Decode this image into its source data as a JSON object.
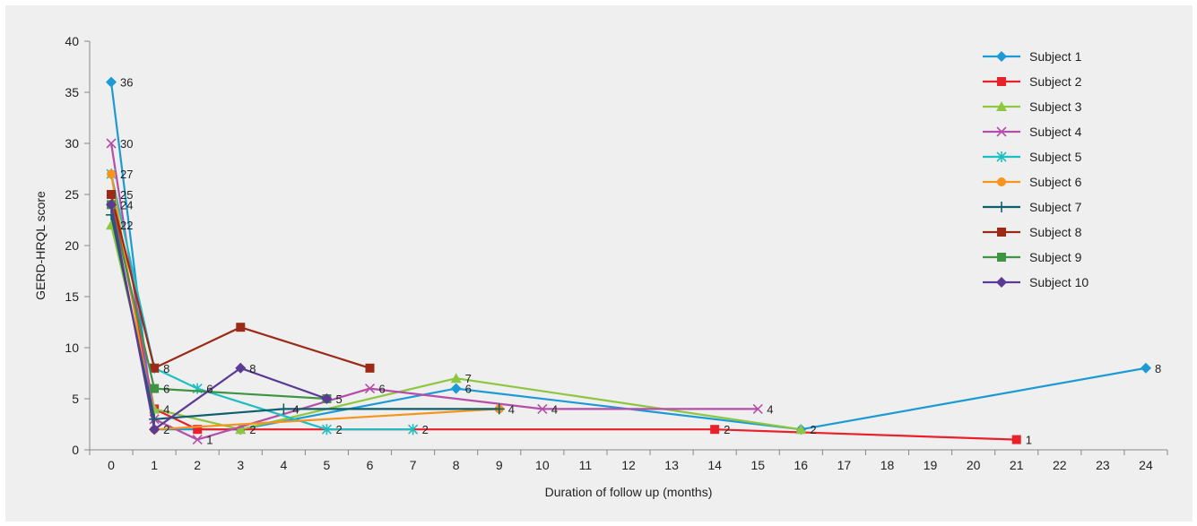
{
  "chart_data": {
    "type": "line",
    "title": "",
    "xlabel": "Duration of follow up (months)",
    "ylabel": "GERD-HRQL score",
    "ylim": [
      0,
      40
    ],
    "yticks": [
      0,
      5,
      10,
      15,
      20,
      25,
      30,
      35,
      40
    ],
    "xcategories": [
      "0",
      "1",
      "2",
      "3",
      "4",
      "5",
      "6",
      "7",
      "8",
      "9",
      "10",
      "11",
      "12",
      "13",
      "14",
      "15",
      "16",
      "17",
      "18",
      "19",
      "20",
      "21",
      "22",
      "23",
      "24"
    ],
    "grid": false,
    "legend": "right",
    "series": [
      {
        "name": "Subject 1",
        "color": "#1b9ad6",
        "marker": "diamond",
        "x": [
          0,
          1,
          3,
          8,
          16,
          24
        ],
        "y": [
          36,
          2,
          2,
          6,
          2,
          8
        ],
        "labels": [
          "36",
          "2",
          "2",
          "6",
          "2",
          "8"
        ]
      },
      {
        "name": "Subject 2",
        "color": "#e8212b",
        "marker": "square",
        "x": [
          0,
          1,
          2,
          14,
          21
        ],
        "y": [
          25,
          4,
          2,
          2,
          1
        ],
        "labels": [
          "25",
          "4",
          "",
          "2",
          "1"
        ]
      },
      {
        "name": "Subject 3",
        "color": "#8dc63f",
        "marker": "triangle",
        "x": [
          0,
          1,
          3,
          8,
          16
        ],
        "y": [
          22,
          4,
          2,
          7,
          2
        ],
        "labels": [
          "22",
          "",
          "",
          "7",
          ""
        ]
      },
      {
        "name": "Subject 4",
        "color": "#b54ea8",
        "marker": "x",
        "x": [
          0,
          1,
          2,
          6,
          10,
          15
        ],
        "y": [
          30,
          3,
          1,
          6,
          4,
          4
        ],
        "labels": [
          "30",
          "",
          "1",
          "6",
          "4",
          "4"
        ]
      },
      {
        "name": "Subject 5",
        "color": "#1ebfc2",
        "marker": "asterisk",
        "x": [
          0,
          1,
          2,
          5,
          7
        ],
        "y": [
          27,
          8,
          6,
          2,
          2
        ],
        "labels": [
          "",
          "8",
          "6",
          "2",
          "2"
        ]
      },
      {
        "name": "Subject 6",
        "color": "#f7941e",
        "marker": "circle",
        "x": [
          0,
          1,
          9
        ],
        "y": [
          27,
          2,
          4
        ],
        "labels": [
          "27",
          "",
          "4"
        ]
      },
      {
        "name": "Subject 7",
        "color": "#0f5f6e",
        "marker": "plus",
        "x": [
          0,
          1,
          4,
          9
        ],
        "y": [
          23,
          3,
          4,
          4
        ],
        "labels": [
          "",
          "",
          "4",
          ""
        ]
      },
      {
        "name": "Subject 8",
        "color": "#9b2a16",
        "marker": "square",
        "x": [
          0,
          1,
          3,
          6
        ],
        "y": [
          25,
          8,
          12,
          8
        ],
        "labels": [
          "",
          "",
          "",
          ""
        ]
      },
      {
        "name": "Subject 9",
        "color": "#3f9444",
        "marker": "square",
        "x": [
          0,
          1,
          5
        ],
        "y": [
          24,
          6,
          5
        ],
        "labels": [
          "",
          "6",
          ""
        ]
      },
      {
        "name": "Subject 10",
        "color": "#5b3a95",
        "marker": "diamond",
        "x": [
          0,
          1,
          3,
          5
        ],
        "y": [
          24,
          2,
          8,
          5
        ],
        "labels": [
          "24",
          "",
          "8",
          "5"
        ]
      }
    ]
  }
}
